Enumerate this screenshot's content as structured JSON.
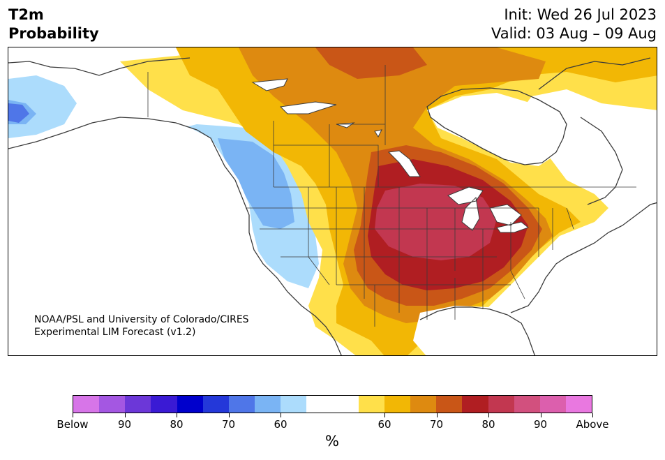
{
  "title": {
    "left_line1": "T2m",
    "left_line2": "Probability",
    "init": "Init: Wed 26 Jul 2023",
    "valid": "Valid: 03 Aug – 09 Aug"
  },
  "credit": {
    "line1": "NOAA/PSL and University of Colorado/CIRES",
    "line2": "Experimental LIM Forecast (v1.2)"
  },
  "colorbar": {
    "unit": "%",
    "colors": [
      "#d775e8",
      "#a457e2",
      "#6c37d8",
      "#3a1ad4",
      "#0000cc",
      "#2438d9",
      "#4f76e8",
      "#7ab4f4",
      "#acdcfc",
      "#ffffff",
      "#ffffff",
      "#ffe04a",
      "#f2b705",
      "#de8a10",
      "#c95617",
      "#b01e22",
      "#c23750",
      "#d2507e",
      "#dc5fad",
      "#e978e0"
    ],
    "tick_labels": [
      "Below",
      "90",
      "80",
      "70",
      "60",
      "60",
      "70",
      "80",
      "90",
      "Above"
    ]
  },
  "colors": {
    "cold_light": "#acdcfc",
    "cold_mid": "#7ab4f4",
    "cold_dark": "#4f76e8",
    "warm_yellow": "#ffe04a",
    "warm_gold": "#f2b705",
    "warm_orange": "#de8a10",
    "warm_rust": "#c95617",
    "warm_red": "#b01e22",
    "warm_crimson": "#c23750",
    "coast": "#3a3a3a"
  }
}
